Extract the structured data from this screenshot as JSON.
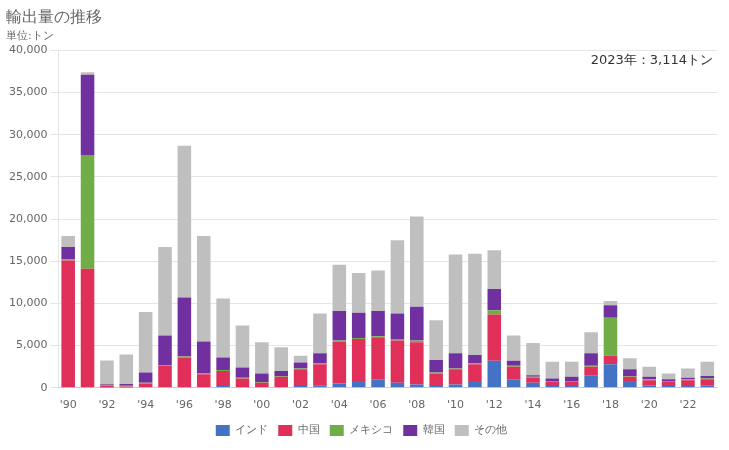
{
  "chart_data": {
    "type": "bar",
    "title": "輸出量の推移",
    "subtitle": "単位:トン",
    "annotations": [
      "2023年：3,114トン"
    ],
    "categories": [
      "'90",
      null,
      "'92",
      null,
      "'94",
      null,
      "'96",
      null,
      "'98",
      null,
      "'00",
      null,
      "'02",
      null,
      "'04",
      null,
      "'06",
      null,
      "'08",
      null,
      "'10",
      null,
      "'12",
      null,
      "'14",
      null,
      "'16",
      null,
      "'18",
      null,
      "'20",
      null,
      "'22",
      null
    ],
    "series": [
      {
        "name": "インド",
        "color": "#4472c4",
        "values": [
          100,
          100,
          50,
          50,
          100,
          100,
          100,
          100,
          200,
          100,
          100,
          100,
          200,
          300,
          500,
          800,
          1000,
          600,
          400,
          200,
          400,
          800,
          3200,
          1000,
          600,
          200,
          200,
          1500,
          2800,
          800,
          300,
          200,
          200,
          300
        ]
      },
      {
        "name": "中国",
        "color": "#e0305a",
        "values": [
          15000,
          14000,
          200,
          100,
          400,
          2500,
          3500,
          1500,
          1800,
          1000,
          500,
          1200,
          2000,
          2500,
          5000,
          5000,
          5000,
          5000,
          5000,
          1500,
          1800,
          2000,
          5500,
          1500,
          600,
          500,
          500,
          1000,
          1000,
          500,
          600,
          500,
          700,
          700
        ]
      },
      {
        "name": "メキシコ",
        "color": "#70ad47",
        "values": [
          100,
          13500,
          100,
          100,
          100,
          100,
          100,
          100,
          100,
          100,
          100,
          100,
          100,
          100,
          100,
          100,
          100,
          200,
          200,
          100,
          100,
          100,
          500,
          100,
          100,
          100,
          100,
          100,
          4500,
          100,
          100,
          100,
          100,
          100
        ]
      },
      {
        "name": "韓国",
        "color": "#7030a0",
        "values": [
          1500,
          9500,
          100,
          200,
          1200,
          3500,
          7000,
          3800,
          1500,
          1200,
          1000,
          600,
          700,
          1200,
          3500,
          3000,
          3000,
          3000,
          4000,
          1500,
          1800,
          1000,
          2500,
          600,
          200,
          300,
          500,
          1500,
          1500,
          800,
          300,
          200,
          200,
          300
        ]
      },
      {
        "name": "その他",
        "color": "#bfbfbf",
        "values": [
          1300,
          300,
          2800,
          3500,
          7200,
          10500,
          18000,
          12500,
          7000,
          5000,
          3700,
          2800,
          800,
          4700,
          5500,
          4700,
          4800,
          8700,
          10700,
          4700,
          11700,
          12000,
          4600,
          3000,
          3800,
          2000,
          1800,
          2500,
          500,
          1300,
          1200,
          700,
          1100,
          1700
        ]
      }
    ],
    "stacked": true,
    "ylim": [
      0,
      40000
    ],
    "yticks": [
      0,
      {
        "value": 5000,
        "label": "5,000"
      },
      {
        "value": 10000,
        "label": "10,000"
      },
      {
        "value": 15000,
        "label": "15,000"
      },
      {
        "value": 20000,
        "label": "20,000"
      },
      {
        "value": 25000,
        "label": "25,000"
      },
      {
        "value": 30000,
        "label": "30,000"
      },
      {
        "value": 35000,
        "label": "35,000"
      },
      {
        "value": 40000,
        "label": "40,000"
      }
    ],
    "grid": true,
    "legend": "bottom"
  }
}
